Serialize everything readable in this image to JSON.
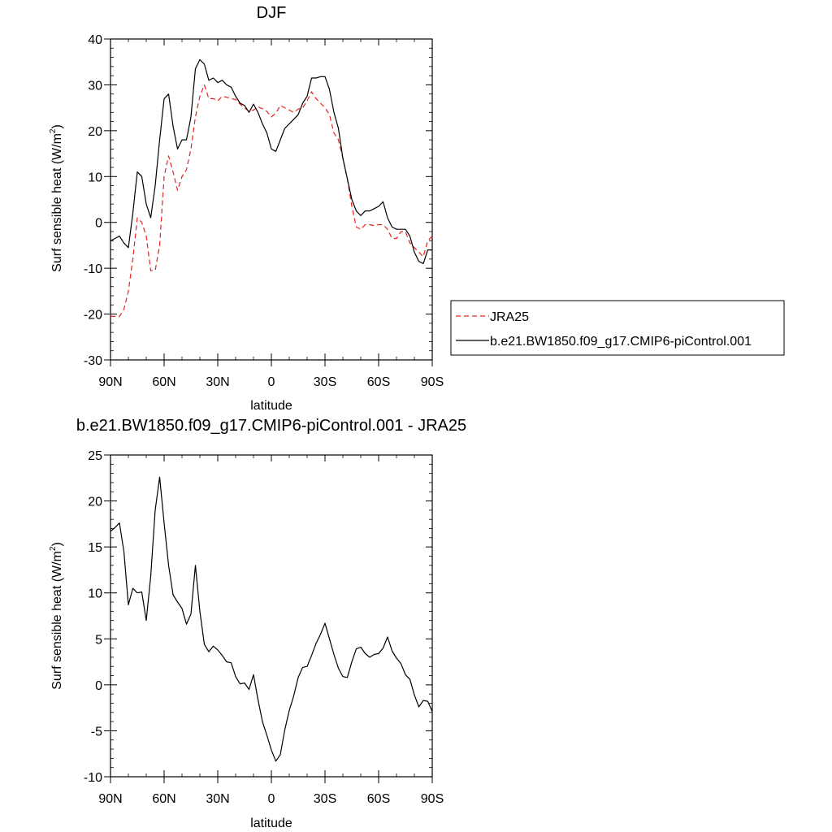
{
  "chart_data": [
    {
      "type": "line",
      "title": "DJF",
      "xlabel": "latitude",
      "ylabel": "Surf sensible heat (W/m²)",
      "ylabel_main": "Surf sensible heat (W/m",
      "ylabel_sup": "2",
      "ylabel_close": ")",
      "xlim": [
        90,
        -90
      ],
      "ylim": [
        -30,
        40
      ],
      "x_ticks": [
        {
          "value": 90,
          "label": "90N"
        },
        {
          "value": 60,
          "label": "60N"
        },
        {
          "value": 30,
          "label": "30N"
        },
        {
          "value": 0,
          "label": "0"
        },
        {
          "value": -30,
          "label": "30S"
        },
        {
          "value": -60,
          "label": "60S"
        },
        {
          "value": -90,
          "label": "90S"
        }
      ],
      "y_ticks": [
        {
          "value": -30,
          "label": "-30"
        },
        {
          "value": -20,
          "label": "-20"
        },
        {
          "value": -10,
          "label": "-10"
        },
        {
          "value": 0,
          "label": "0"
        },
        {
          "value": 10,
          "label": "10"
        },
        {
          "value": 20,
          "label": "20"
        },
        {
          "value": 30,
          "label": "30"
        },
        {
          "value": 40,
          "label": "40"
        }
      ],
      "grid": false,
      "legend_position": "right",
      "series": [
        {
          "name": "JRA25",
          "color": "#e8201e",
          "dash": "dashed",
          "x": [
            90,
            87.5,
            85,
            82.5,
            80,
            77.5,
            75,
            72.5,
            70,
            67.5,
            65,
            62.5,
            60,
            57.5,
            55,
            52.5,
            50,
            47.5,
            45,
            42.5,
            40,
            37.5,
            35,
            32.5,
            30,
            27.5,
            25,
            22.5,
            20,
            17.5,
            15,
            12.5,
            10,
            7.5,
            5,
            2.5,
            0,
            -2.5,
            -5,
            -7.5,
            -10,
            -12.5,
            -15,
            -17.5,
            -20,
            -22.5,
            -25,
            -27.5,
            -30,
            -32.5,
            -35,
            -37.5,
            -40,
            -42.5,
            -45,
            -47.5,
            -50,
            -52.5,
            -55,
            -57.5,
            -60,
            -62.5,
            -65,
            -67.5,
            -70,
            -72.5,
            -75,
            -77.5,
            -80,
            -82.5,
            -85,
            -87.5,
            -90
          ],
          "values": [
            -20.5,
            -20.5,
            -20.5,
            -19,
            -15,
            -8,
            1,
            0,
            -3,
            -10.5,
            -10.5,
            -5,
            10,
            14.5,
            11,
            7,
            10,
            11.5,
            16,
            23,
            27.5,
            30,
            27,
            27,
            26.5,
            27.5,
            27.3,
            27,
            26.8,
            25.8,
            25,
            24.2,
            24.5,
            25.2,
            24.8,
            24.2,
            23,
            23.8,
            25.5,
            25,
            24.5,
            24,
            24.7,
            25,
            26.5,
            28.5,
            27,
            26,
            25,
            23.5,
            19.5,
            18,
            14,
            9.5,
            3.5,
            -1,
            -1.5,
            -0.5,
            -0.5,
            -0.7,
            -0.5,
            -0.5,
            -1.5,
            -3.5,
            -3.5,
            -2,
            -2,
            -4.5,
            -5.5,
            -6.5,
            -7.5,
            -4,
            -3
          ]
        },
        {
          "name": "b.e21.BW1850.f09_g17.CMIP6-piControl.001",
          "color": "#000000",
          "dash": "solid",
          "x": [
            90,
            87.5,
            85,
            82.5,
            80,
            77.5,
            75,
            72.5,
            70,
            67.5,
            65,
            62.5,
            60,
            57.5,
            55,
            52.5,
            50,
            47.5,
            45,
            42.5,
            40,
            37.5,
            35,
            32.5,
            30,
            27.5,
            25,
            22.5,
            20,
            17.5,
            15,
            12.5,
            10,
            7.5,
            5,
            2.5,
            0,
            -2.5,
            -5,
            -7.5,
            -10,
            -12.5,
            -15,
            -17.5,
            -20,
            -22.5,
            -25,
            -27.5,
            -30,
            -32.5,
            -35,
            -37.5,
            -40,
            -42.5,
            -45,
            -47.5,
            -50,
            -52.5,
            -55,
            -57.5,
            -60,
            -62.5,
            -65,
            -67.5,
            -70,
            -72.5,
            -75,
            -77.5,
            -80,
            -82.5,
            -85,
            -87.5,
            -90
          ],
          "values": [
            -4,
            -3.5,
            -3,
            -4.5,
            -5.5,
            2,
            11,
            10,
            4,
            1,
            8,
            18,
            27,
            28,
            21,
            16,
            18,
            18,
            23,
            33.5,
            35.5,
            34.5,
            31,
            31.5,
            30.5,
            31,
            30,
            29.5,
            27.5,
            26,
            25.5,
            24,
            25.8,
            24,
            21.5,
            19.5,
            16,
            15.5,
            18,
            20.5,
            21.5,
            22.5,
            23.5,
            26,
            27.5,
            31.5,
            31.5,
            31.8,
            31.8,
            29,
            24,
            20.5,
            14,
            9.5,
            5,
            2.5,
            1.5,
            2.5,
            2.5,
            3,
            3.5,
            4.5,
            1,
            -1,
            -1.5,
            -1.5,
            -1.5,
            -3,
            -6.5,
            -8.5,
            -9,
            -6,
            -6
          ]
        }
      ]
    },
    {
      "type": "line",
      "title": "b.e21.BW1850.f09_g17.CMIP6-piControl.001 - JRA25",
      "xlabel": "latitude",
      "ylabel": "Surf sensible heat (W/m²)",
      "ylabel_main": "Surf sensible heat (W/m",
      "ylabel_sup": "2",
      "ylabel_close": ")",
      "xlim": [
        90,
        -90
      ],
      "ylim": [
        -10,
        25
      ],
      "x_ticks": [
        {
          "value": 90,
          "label": "90N"
        },
        {
          "value": 60,
          "label": "60N"
        },
        {
          "value": 30,
          "label": "30N"
        },
        {
          "value": 0,
          "label": "0"
        },
        {
          "value": -30,
          "label": "30S"
        },
        {
          "value": -60,
          "label": "60S"
        },
        {
          "value": -90,
          "label": "90S"
        }
      ],
      "y_ticks": [
        {
          "value": -10,
          "label": "-10"
        },
        {
          "value": -5,
          "label": "-5"
        },
        {
          "value": 0,
          "label": "0"
        },
        {
          "value": 5,
          "label": "5"
        },
        {
          "value": 10,
          "label": "10"
        },
        {
          "value": 15,
          "label": "15"
        },
        {
          "value": 20,
          "label": "20"
        },
        {
          "value": 25,
          "label": "25"
        }
      ],
      "grid": false,
      "series": [
        {
          "color": "#000000",
          "dash": "solid",
          "x": [
            90,
            87.5,
            85,
            82.5,
            80,
            77.5,
            75,
            72.5,
            70,
            67.5,
            65,
            62.5,
            60,
            57.5,
            55,
            52.5,
            50,
            47.5,
            45,
            42.5,
            40,
            37.5,
            35,
            32.5,
            30,
            27.5,
            25,
            22.5,
            20,
            17.5,
            15,
            12.5,
            10,
            7.5,
            5,
            2.5,
            0,
            -2.5,
            -5,
            -7.5,
            -10,
            -12.5,
            -15,
            -17.5,
            -20,
            -22.5,
            -25,
            -27.5,
            -30,
            -32.5,
            -35,
            -37.5,
            -40,
            -42.5,
            -45,
            -47.5,
            -50,
            -52.5,
            -55,
            -57.5,
            -60,
            -62.5,
            -65,
            -67.5,
            -70,
            -72.5,
            -75,
            -77.5,
            -80,
            -82.5,
            -85,
            -87.5,
            -90
          ],
          "values": [
            16.7,
            17.1,
            17.6,
            14.5,
            8.7,
            10.5,
            10.0,
            10.1,
            7.0,
            11.8,
            19.0,
            22.6,
            17.6,
            13.0,
            9.8,
            9.0,
            8.3,
            6.6,
            7.7,
            13.0,
            8.0,
            4.4,
            3.6,
            4.2,
            3.8,
            3.2,
            2.5,
            2.4,
            0.9,
            0.1,
            0.2,
            -0.5,
            1.1,
            -1.6,
            -4.0,
            -5.5,
            -7.1,
            -8.3,
            -7.6,
            -4.9,
            -2.8,
            -1.2,
            0.8,
            1.9,
            2.0,
            3.2,
            4.5,
            5.5,
            6.7,
            5.0,
            3.3,
            1.8,
            0.9,
            0.8,
            2.5,
            3.9,
            4.1,
            3.4,
            3.0,
            3.3,
            3.4,
            4.0,
            5.2,
            3.7,
            2.9,
            2.3,
            1.1,
            0.6,
            -1.1,
            -2.4,
            -1.7,
            -1.8,
            -2.9
          ]
        }
      ]
    }
  ]
}
